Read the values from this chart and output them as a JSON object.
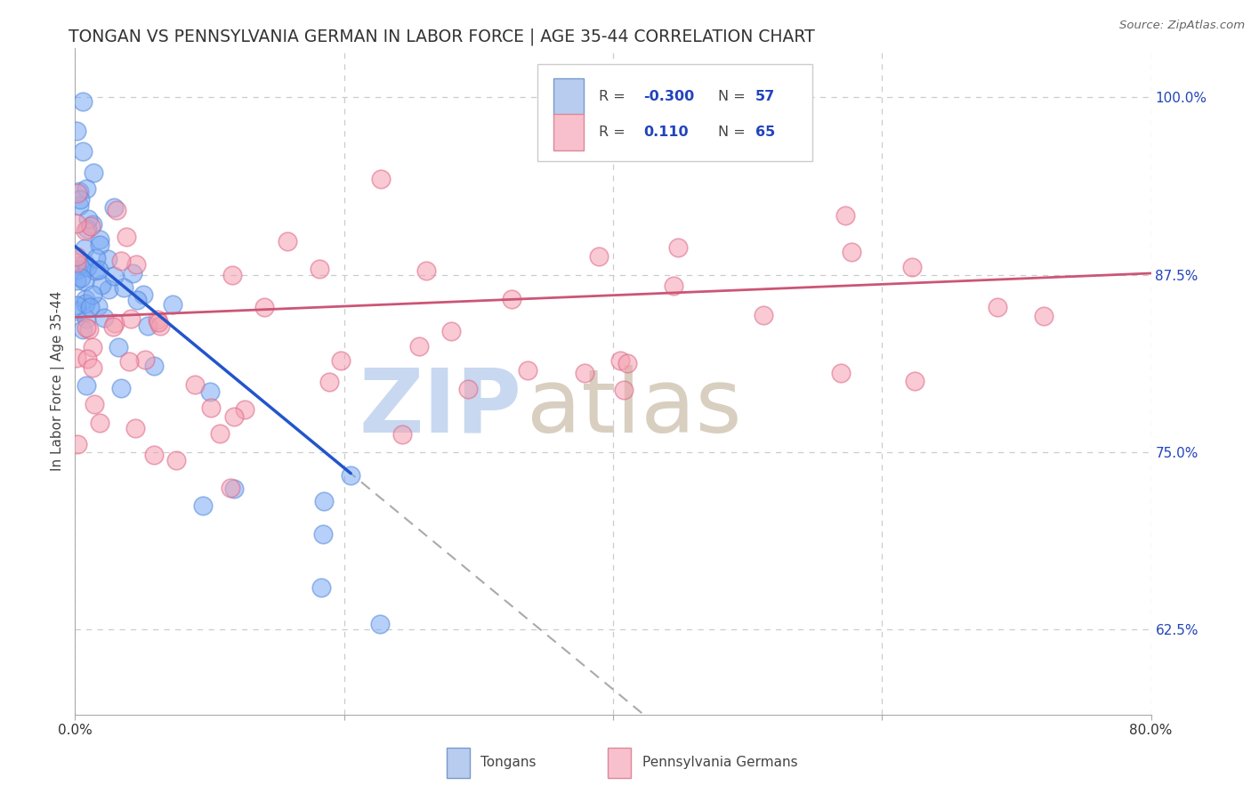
{
  "title": "TONGAN VS PENNSYLVANIA GERMAN IN LABOR FORCE | AGE 35-44 CORRELATION CHART",
  "source": "Source: ZipAtlas.com",
  "ylabel": "In Labor Force | Age 35-44",
  "x_min": 0.0,
  "x_max": 0.8,
  "y_min": 0.565,
  "y_max": 1.035,
  "y_ticks_right": [
    0.625,
    0.75,
    0.875,
    1.0
  ],
  "y_tick_labels_right": [
    "62.5%",
    "75.0%",
    "87.5%",
    "100.0%"
  ],
  "grid_color": "#cccccc",
  "background_color": "#ffffff",
  "tongan_color": "#7aabf5",
  "tongan_edge_color": "#5588dd",
  "penn_german_color": "#f5a0b0",
  "penn_german_edge_color": "#dd6688",
  "legend_R_color": "#2244bb",
  "watermark_zip_color": "#c8d8f0",
  "watermark_atlas_color": "#d8cfc0",
  "blue_line_color": "#2255cc",
  "pink_line_color": "#cc5577",
  "dash_line_color": "#aaaaaa",
  "right_tick_color": "#2244bb"
}
